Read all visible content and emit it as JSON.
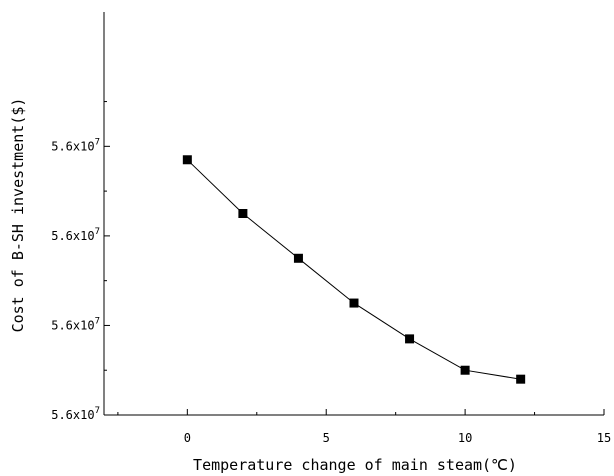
{
  "chart_data": {
    "type": "line",
    "title": "",
    "xlabel": "Temperature change of main steam(℃)",
    "ylabel": "Cost of B-SH investment($)",
    "xlim": [
      -3,
      15
    ],
    "ylim": [
      55999930,
      56000110
    ],
    "x_ticks": [
      0,
      5,
      10,
      15
    ],
    "x_tick_labels": [
      "0",
      "5",
      "10",
      "15"
    ],
    "y_ticks": [
      55999930,
      55999970,
      56000010,
      56000050
    ],
    "y_tick_labels": [
      "5.6x10",
      "5.6x10",
      "5.6x10",
      "5.6x10"
    ],
    "y_tick_exponent": "7",
    "grid": false,
    "series": [
      {
        "x": [
          0,
          2,
          4,
          6,
          8,
          10,
          12
        ],
        "y": [
          56000044,
          56000020,
          56000000,
          55999980,
          55999964,
          55999950,
          55999946
        ]
      }
    ],
    "marker": "square",
    "color": "#000000"
  }
}
